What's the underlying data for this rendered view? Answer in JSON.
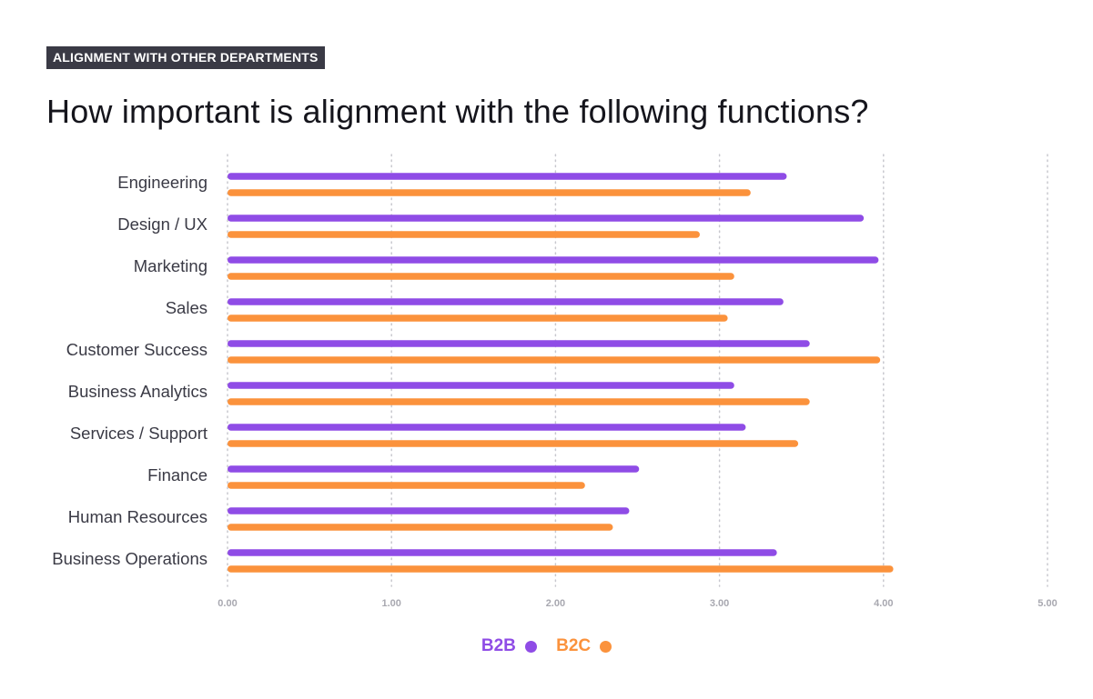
{
  "header": {
    "badge": "ALIGNMENT WITH OTHER DEPARTMENTS",
    "title": "How important is alignment with the following functions?"
  },
  "colors": {
    "B2B": "#8f4ce6",
    "B2C": "#fb923c",
    "grid": "#c8c8ce",
    "label": "#3a3a45",
    "tick": "#a8a8b0"
  },
  "chart_data": {
    "type": "bar",
    "orientation": "horizontal",
    "title": "How important is alignment with the following functions?",
    "categories": [
      "Engineering",
      "Design / UX",
      "Marketing",
      "Sales",
      "Customer Success",
      "Business Analytics",
      "Services / Support",
      "Finance",
      "Human Resources",
      "Business Operations"
    ],
    "series": [
      {
        "name": "B2B",
        "color": "#8f4ce6",
        "values": [
          3.41,
          3.88,
          3.97,
          3.39,
          3.55,
          3.09,
          3.16,
          2.51,
          2.45,
          3.35
        ]
      },
      {
        "name": "B2C",
        "color": "#fb923c",
        "values": [
          3.19,
          2.88,
          3.09,
          3.05,
          3.98,
          3.55,
          3.48,
          2.18,
          2.35,
          4.06
        ]
      }
    ],
    "xlim": [
      0,
      5
    ],
    "xticks": [
      "0.00",
      "1.00",
      "2.00",
      "3.00",
      "4.00",
      "5.00"
    ],
    "grid": "vertical dotted",
    "legend": "bottom-center"
  }
}
